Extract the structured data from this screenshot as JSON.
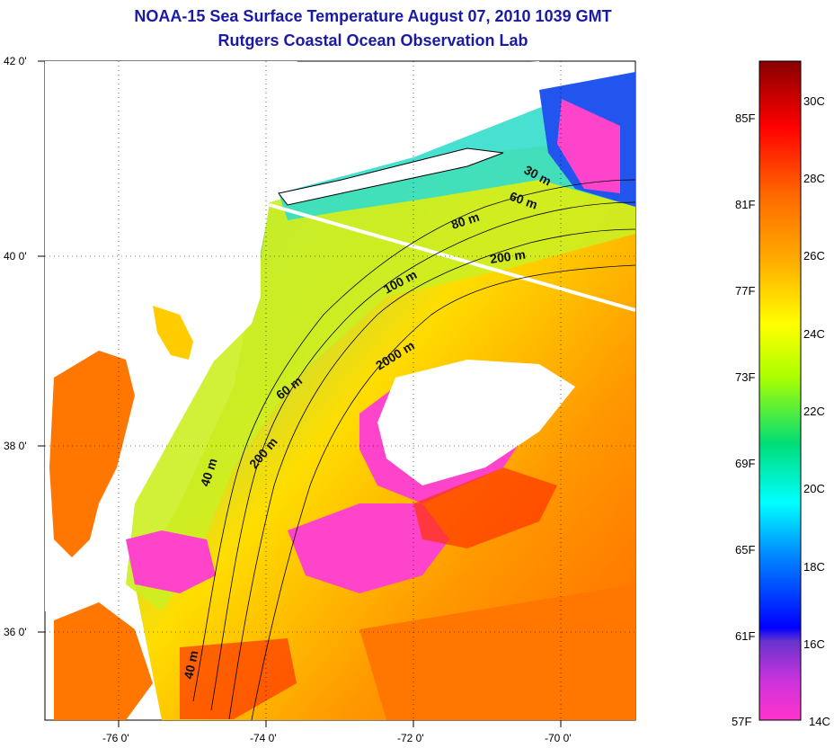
{
  "header": {
    "title": "NOAA-15 Sea Surface Temperature August 07, 2010 1039 GMT",
    "subtitle": "Rutgers Coastal Ocean Observation Lab"
  },
  "map": {
    "lat_ticks": [
      "42 0'",
      "40 0'",
      "38 0'",
      "36 0'"
    ],
    "lon_ticks": [
      "-76 0'",
      "-74 0'",
      "-72 0'",
      "-70 0'"
    ],
    "isobath_labels": [
      "30 m",
      "60 m",
      "80 m",
      "200 m",
      "100 m",
      "2000 m",
      "60 m",
      "200 m",
      "40 m",
      "40 m"
    ]
  },
  "colorbar": {
    "fahrenheit": [
      "85F",
      "81F",
      "77F",
      "73F",
      "69F",
      "65F",
      "61F",
      "57F"
    ],
    "celsius": [
      "30C",
      "28C",
      "26C",
      "24C",
      "22C",
      "20C",
      "18C",
      "16C",
      "14C"
    ],
    "colors": [
      "#ff33cc",
      "#8a2be2",
      "#0000ff",
      "#00aaff",
      "#00ffff",
      "#00dd66",
      "#aaff00",
      "#ffff00",
      "#ffaa00",
      "#ff6600",
      "#ff0000",
      "#990000"
    ]
  }
}
